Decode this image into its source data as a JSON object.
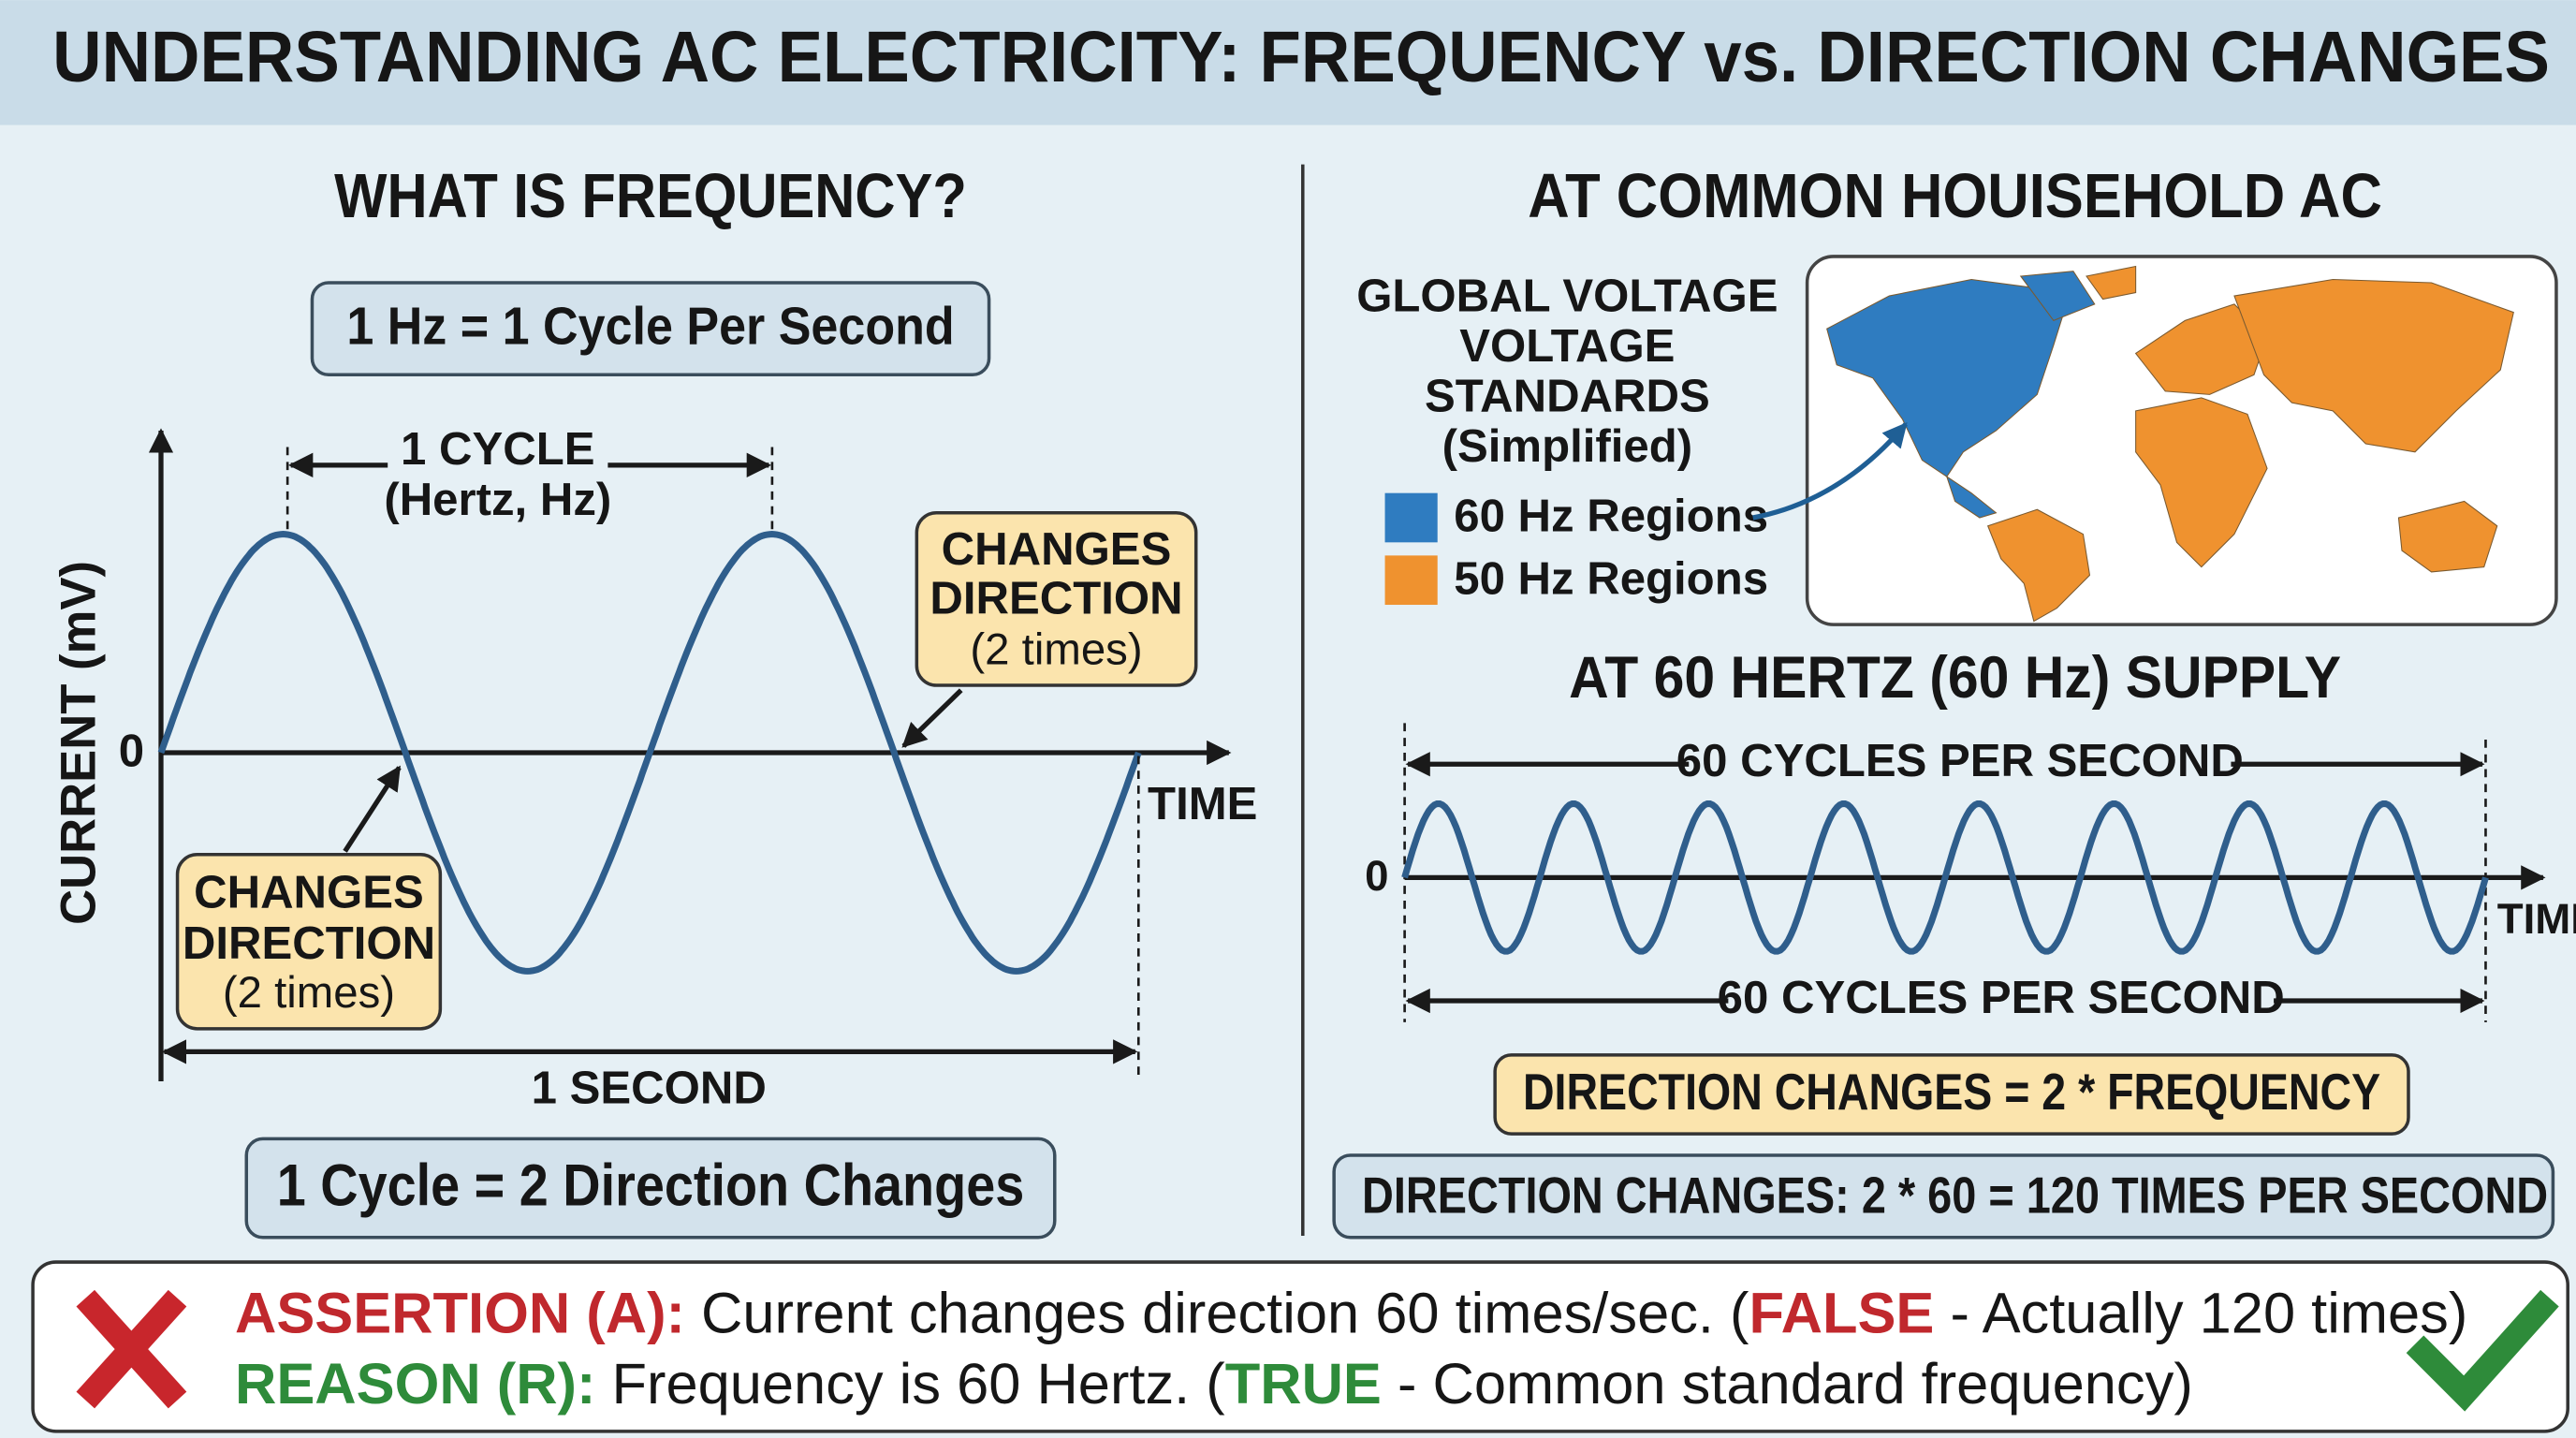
{
  "title": "UNDERSTANDING AC ELECTRICITY: FREQUENCY vs. DIRECTION CHANGES",
  "left": {
    "heading": "WHAT IS FREQUENCY?",
    "definition": "1 Hz = 1 Cycle Per Second",
    "cycle_label": "1 CYCLE",
    "cycle_unit": "(Hertz, Hz)",
    "y_axis_label": "CURRENT (mV)",
    "zero_label": "0",
    "x_axis_label": "TIME",
    "callout_right": {
      "line1": "CHANGES",
      "line2": "DIRECTION",
      "note": "(2 times)"
    },
    "callout_left": {
      "line1": "CHANGES",
      "line2": "DIRECTION",
      "note": "(2 times)"
    },
    "duration_label": "1 SECOND",
    "summary": "1 Cycle = 2 Direction Changes"
  },
  "right": {
    "heading": "AT COMMON HOUISEHOLD AC",
    "map_title": [
      "GLOBAL VOLTAGE",
      "VOLTAGE",
      "STANDARDS",
      "(Simplified)"
    ],
    "legend": [
      {
        "label": "60 Hz Regions",
        "color": "#2f7cc0"
      },
      {
        "label": "50 Hz Regions",
        "color": "#ef922f"
      }
    ],
    "supply_heading": "AT 60 HERTZ (60 Hz) SUPPLY",
    "top_span": "60 CYCLES PER SECOND",
    "bottom_span": "60 CYCLES PER SECOND",
    "zero_label": "0",
    "x_axis_label": "TIME",
    "formula": "DIRECTION CHANGES = 2 * FREQUENCY",
    "calculation": "DIRECTION CHANGES: 2 * 60 = 120 TIMES PER SECOND"
  },
  "conclusion": {
    "assertion": {
      "label": "ASSERTION (A):",
      "text": " Current changes direction 60 times/sec. (",
      "verdict": "FALSE",
      "note": " - Actually 120 times)"
    },
    "reason": {
      "label": "REASON (R):",
      "text": " Frequency is 60 Hertz. (",
      "verdict": "TRUE",
      "note": " - Common standard frequency)"
    }
  }
}
